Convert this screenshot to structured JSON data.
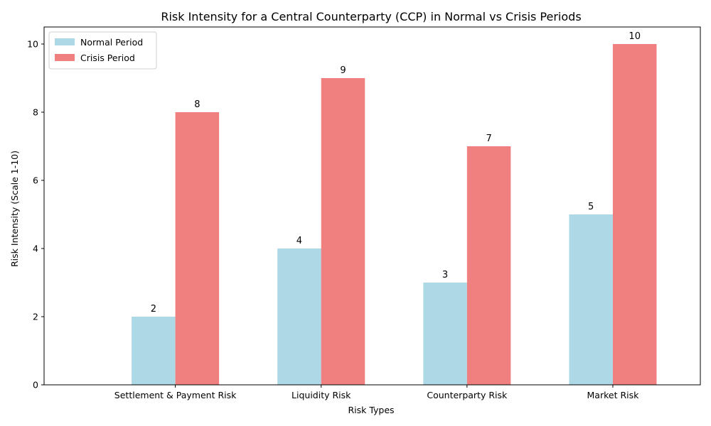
{
  "chart_data": {
    "type": "bar",
    "title": "Risk Intensity for a Central Counterparty (CCP) in Normal vs Crisis Periods",
    "xlabel": "Risk Types",
    "ylabel": "Risk Intensity (Scale 1-10)",
    "categories": [
      "Settlement & Payment Risk",
      "Liquidity Risk",
      "Counterparty Risk",
      "Market Risk"
    ],
    "series": [
      {
        "name": "Normal Period",
        "values": [
          2,
          4,
          3,
          5
        ],
        "color": "#add8e6"
      },
      {
        "name": "Crisis Period",
        "values": [
          8,
          9,
          7,
          10
        ],
        "color": "#f08080"
      }
    ],
    "ylim": [
      0,
      10.5
    ],
    "yticks": [
      0,
      2,
      4,
      6,
      8,
      10
    ],
    "grid": false,
    "legend_position": "top-left",
    "data_labels": true
  }
}
